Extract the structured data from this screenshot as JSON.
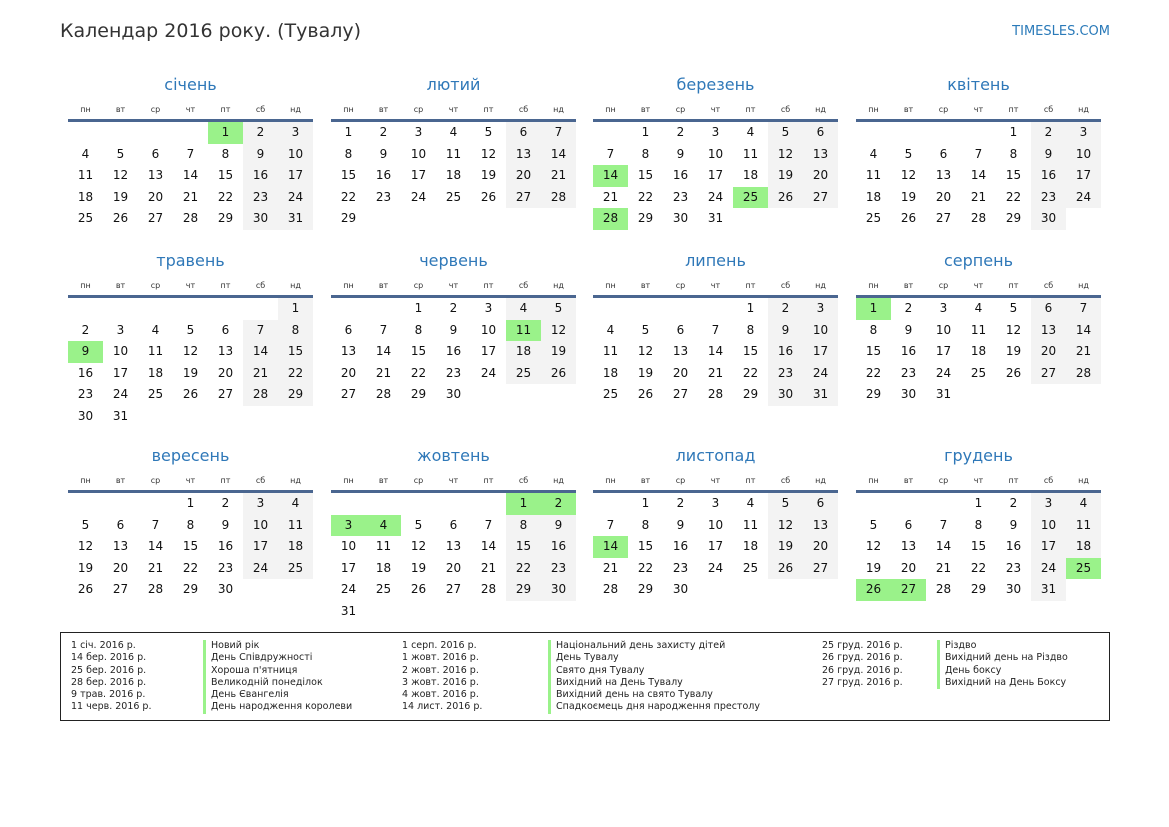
{
  "header": {
    "title": "Календар 2016 року. (Тувалу)",
    "site": "TIMESLES.COM"
  },
  "year": 2016,
  "weekdays": [
    "пн",
    "вт",
    "ср",
    "чт",
    "пт",
    "сб",
    "нд"
  ],
  "colors": {
    "accent": "#2f78b8",
    "holiday": "#9af28a",
    "weekend": "#f3f3f3",
    "rule": "#4a6690"
  },
  "months": [
    {
      "name": "січень",
      "holidays": [
        1
      ]
    },
    {
      "name": "лютий",
      "holidays": []
    },
    {
      "name": "березень",
      "holidays": [
        14,
        25,
        28
      ]
    },
    {
      "name": "квітень",
      "holidays": []
    },
    {
      "name": "травень",
      "holidays": [
        9
      ]
    },
    {
      "name": "червень",
      "holidays": [
        11
      ]
    },
    {
      "name": "липень",
      "holidays": []
    },
    {
      "name": "серпень",
      "holidays": [
        1
      ]
    },
    {
      "name": "вересень",
      "holidays": []
    },
    {
      "name": "жовтень",
      "holidays": [
        1,
        2,
        3,
        4
      ]
    },
    {
      "name": "листопад",
      "holidays": [
        14
      ]
    },
    {
      "name": "грудень",
      "holidays": [
        25,
        26,
        27
      ]
    }
  ],
  "legend": [
    [
      {
        "date": "1 січ. 2016 р.",
        "name": "Новий рік"
      },
      {
        "date": "14 бер. 2016 р.",
        "name": "День Співдружності"
      },
      {
        "date": "25 бер. 2016 р.",
        "name": "Хороша п'ятниця"
      },
      {
        "date": "28 бер. 2016 р.",
        "name": "Великодній понеділок"
      },
      {
        "date": "9 трав. 2016 р.",
        "name": "День Євангелія"
      },
      {
        "date": "11 черв. 2016 р.",
        "name": "День народження королеви"
      }
    ],
    [
      {
        "date": "1 серп. 2016 р.",
        "name": "Національний день захисту дітей"
      },
      {
        "date": "1 жовт. 2016 р.",
        "name": "День Тувалу"
      },
      {
        "date": "2 жовт. 2016 р.",
        "name": "Свято дня Тувалу"
      },
      {
        "date": "3 жовт. 2016 р.",
        "name": "Вихідний на День Тувалу"
      },
      {
        "date": "4 жовт. 2016 р.",
        "name": "Вихідний день на свято Тувалу"
      },
      {
        "date": "14 лист. 2016 р.",
        "name": "Спадкоємець дня народження престолу"
      }
    ],
    [
      {
        "date": "25 груд. 2016 р.",
        "name": "Різдво"
      },
      {
        "date": "26 груд. 2016 р.",
        "name": "Вихідний день на Різдво"
      },
      {
        "date": "26 груд. 2016 р.",
        "name": "День боксу"
      },
      {
        "date": "27 груд. 2016 р.",
        "name": "Вихідний на День Боксу"
      }
    ]
  ]
}
